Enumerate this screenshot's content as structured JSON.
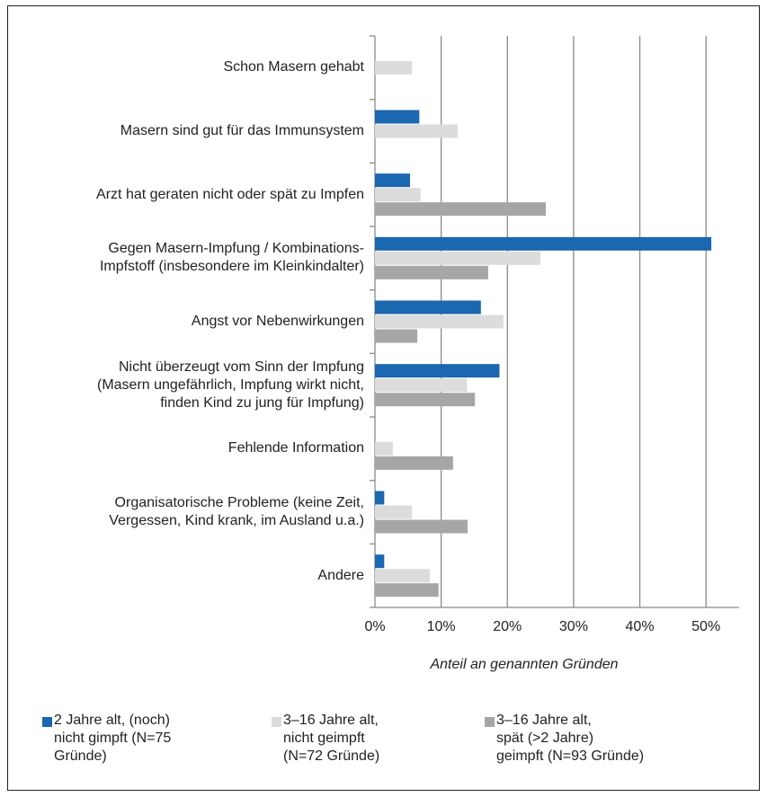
{
  "chart_data": {
    "type": "hbar",
    "xlabel": "Anteil an genannten Gründen",
    "categories": [
      "Schon  Masern gehabt",
      "Masern sind gut für das Immunsystem",
      "Arzt hat geraten nicht oder spät zu Impfen",
      "Gegen Masern-Impfung / Kombinations-\nImpfstoff (insbesondere im Kleinkindalter)",
      "Angst vor Nebenwirkungen",
      "Nicht überzeugt vom Sinn der Impfung\n(Masern ungefährlich, Impfung wirkt nicht,\nfinden Kind zu jung für Impfung)",
      "Fehlende Information",
      "Organisatorische Probleme (keine Zeit,\nVergessen, Kind krank, im Ausland u.a.)",
      "Andere"
    ],
    "series": [
      {
        "name": "2 Jahre alt, (noch)\nnicht gimpft (N=75\nGründe)",
        "color": "#1b67b0",
        "values": [
          0,
          6.7,
          5.3,
          50.8,
          16.0,
          18.8,
          0,
          1.4,
          1.4
        ]
      },
      {
        "name": "3–16 Jahre alt,\nnicht geimpft\n(N=72 Gründe)",
        "color": "#dcdcdc",
        "values": [
          5.6,
          12.5,
          6.9,
          25.0,
          19.4,
          13.9,
          2.7,
          5.6,
          8.3
        ]
      },
      {
        "name": "3–16 Jahre alt,\nspät (>2 Jahre)\ngeimpft (N=93 Gründe)",
        "color": "#a6a6a6",
        "values": [
          0,
          0,
          25.8,
          17.1,
          6.4,
          15.1,
          11.8,
          14.0,
          9.6
        ]
      }
    ],
    "xlim": [
      0,
      55
    ],
    "xticks": [
      {
        "value": 0,
        "label": "0%"
      },
      {
        "value": 10,
        "label": "10%"
      },
      {
        "value": 20,
        "label": "20%"
      },
      {
        "value": 30,
        "label": "30%"
      },
      {
        "value": 40,
        "label": "40%"
      },
      {
        "value": 50,
        "label": "50%"
      }
    ],
    "grid": true
  }
}
